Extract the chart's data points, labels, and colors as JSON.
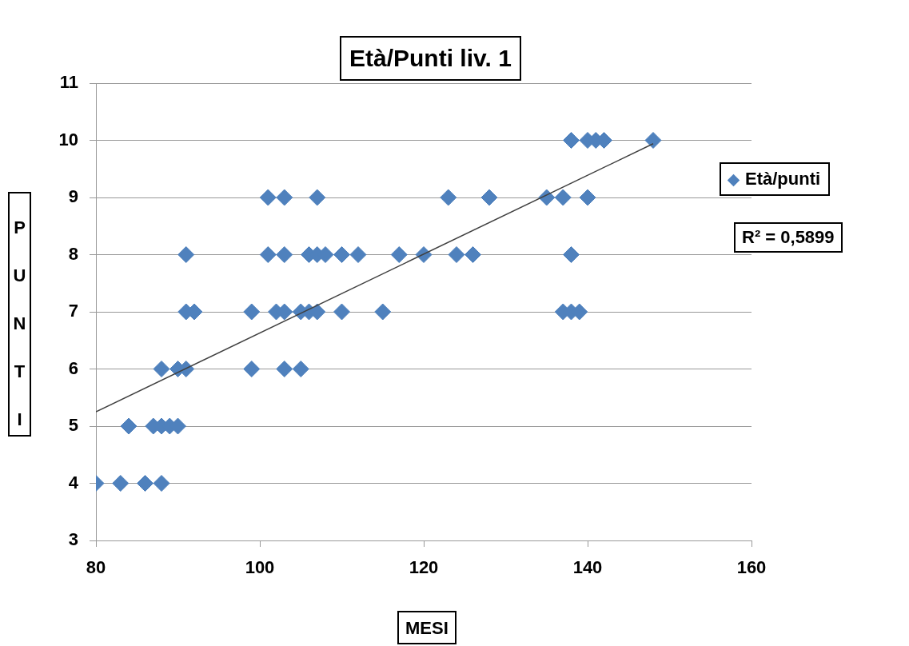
{
  "chart_data": {
    "type": "scatter",
    "title": "Età/Punti liv. 1",
    "xlabel": "MESI",
    "ylabel": "PUNTI",
    "annotations": [
      "R² = 0,5899"
    ],
    "xlim": [
      80,
      160
    ],
    "xticks": [
      80,
      100,
      120,
      140,
      160
    ],
    "ylim": [
      3,
      11
    ],
    "yticks": [
      3,
      4,
      5,
      6,
      7,
      8,
      9,
      10,
      11
    ],
    "grid": "y",
    "legend": "right",
    "marker": "diamond",
    "series": [
      {
        "name": "Età/punti",
        "color": "#4f81bd",
        "x": [
          80,
          83,
          86,
          88,
          84,
          87,
          88,
          89,
          90,
          88,
          90,
          91,
          99,
          103,
          105,
          91,
          92,
          99,
          102,
          103,
          105,
          106,
          107,
          110,
          115,
          137,
          138,
          139,
          91,
          101,
          103,
          106,
          107,
          108,
          110,
          112,
          117,
          120,
          124,
          126,
          138,
          101,
          103,
          107,
          123,
          128,
          135,
          137,
          140,
          138,
          140,
          141,
          142,
          148
        ],
        "values": [
          4,
          4,
          4,
          4,
          5,
          5,
          5,
          5,
          5,
          6,
          6,
          6,
          6,
          6,
          6,
          7,
          7,
          7,
          7,
          7,
          7,
          7,
          7,
          7,
          7,
          7,
          7,
          7,
          8,
          8,
          8,
          8,
          8,
          8,
          8,
          8,
          8,
          8,
          8,
          8,
          8,
          9,
          9,
          9,
          9,
          9,
          9,
          9,
          9,
          10,
          10,
          10,
          10,
          10
        ]
      },
      {
        "type": "line",
        "marker": "none",
        "color": "#404040",
        "x": [
          80,
          148
        ],
        "values": [
          5.25,
          9.94
        ]
      }
    ]
  }
}
